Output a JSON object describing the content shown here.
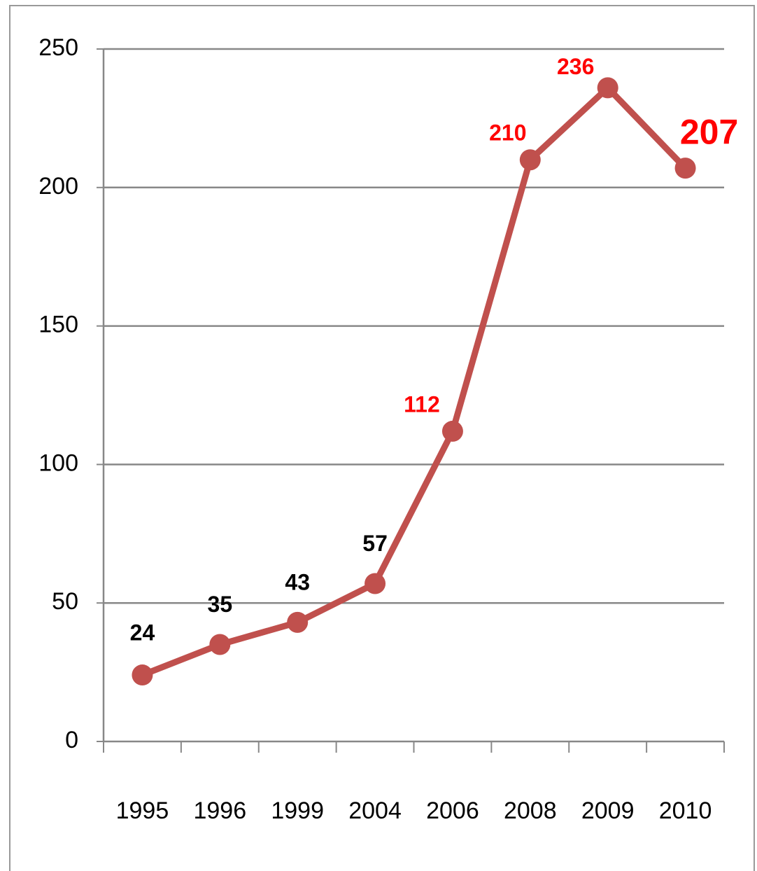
{
  "chart_data": {
    "type": "line",
    "categories": [
      "1995",
      "1996",
      "1999",
      "2004",
      "2006",
      "2008",
      "2009",
      "2010"
    ],
    "series": [
      {
        "color": "#c0504d",
        "values": [
          24,
          35,
          43,
          57,
          112,
          210,
          236,
          207
        ]
      }
    ],
    "label_colors": [
      "#000000",
      "#000000",
      "#000000",
      "#000000",
      "#ff0000",
      "#ff0000",
      "#ff0000",
      "#ff0000"
    ],
    "ylim": [
      0,
      250
    ],
    "yticks": [
      0,
      50,
      100,
      150,
      200,
      250
    ],
    "grid": true
  }
}
